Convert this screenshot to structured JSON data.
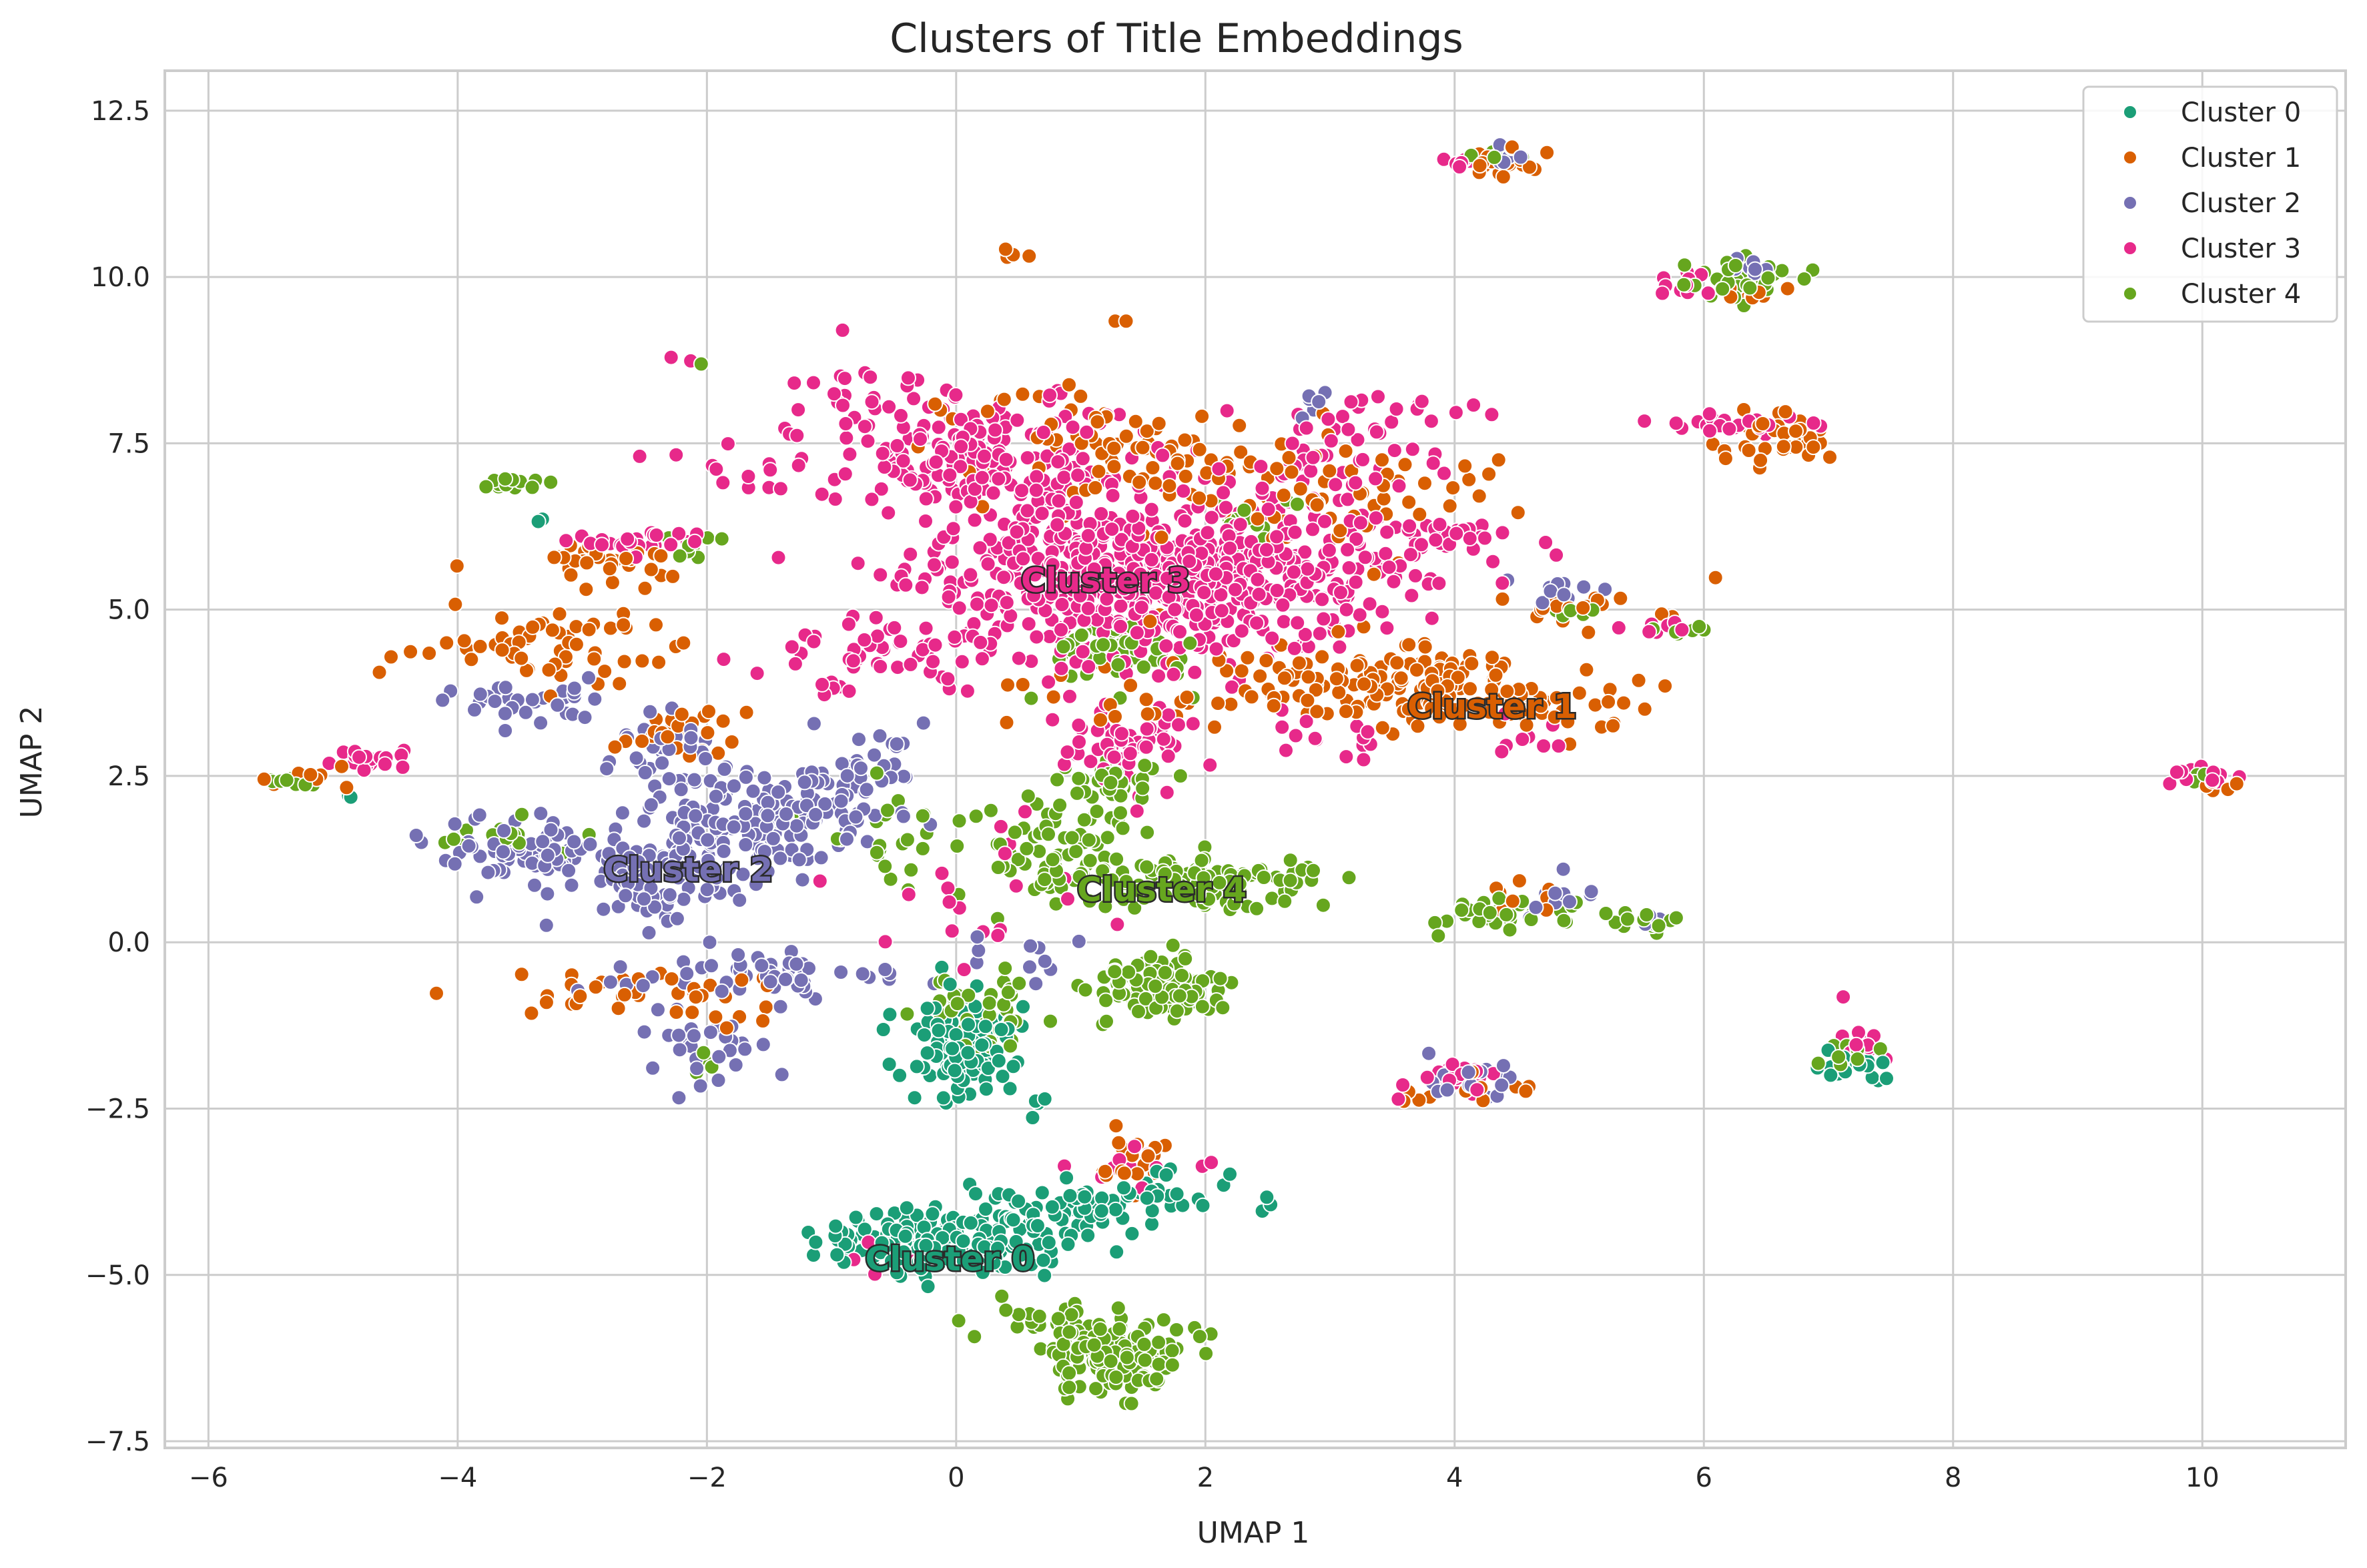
{
  "chart_data": {
    "type": "scatter",
    "title": "Clusters of Title Embeddings",
    "xlabel": "UMAP 1",
    "ylabel": "UMAP 2",
    "xlim": [
      -6.35,
      11.15
    ],
    "ylim": [
      -7.6,
      13.1
    ],
    "xticks": [
      -6,
      -4,
      -2,
      0,
      2,
      4,
      6,
      8,
      10
    ],
    "xtick_labels": [
      "−6",
      "−4",
      "−2",
      "0",
      "2",
      "4",
      "6",
      "8",
      "10"
    ],
    "yticks": [
      -7.5,
      -5.0,
      -2.5,
      0.0,
      2.5,
      5.0,
      7.5,
      10.0,
      12.5
    ],
    "ytick_labels": [
      "−7.5",
      "−5.0",
      "−2.5",
      "0.0",
      "2.5",
      "5.0",
      "7.5",
      "10.0",
      "12.5"
    ],
    "grid": true,
    "legend_position": "top-right",
    "series": [
      {
        "name": "Cluster 0",
        "color": "#1b9e77",
        "centroid_label": "Cluster 0",
        "centroid": [
          -0.05,
          -4.75
        ],
        "blobs": [
          {
            "cx": -0.1,
            "cy": -4.45,
            "sx": 0.5,
            "sy": 0.28,
            "n": 170
          },
          {
            "cx": 0.8,
            "cy": -4.05,
            "sx": 0.35,
            "sy": 0.15,
            "n": 40
          },
          {
            "cx": 1.6,
            "cy": -3.8,
            "sx": 0.35,
            "sy": 0.15,
            "n": 35
          },
          {
            "cx": 0.1,
            "cy": -1.6,
            "sx": 0.22,
            "sy": 0.35,
            "n": 110
          },
          {
            "cx": -3.4,
            "cy": 6.3,
            "sx": 0.05,
            "sy": 0.05,
            "n": 2
          },
          {
            "cx": 4.0,
            "cy": 6.1,
            "sx": 0.1,
            "sy": 0.1,
            "n": 2
          },
          {
            "cx": 7.2,
            "cy": -1.9,
            "sx": 0.18,
            "sy": 0.15,
            "n": 18
          },
          {
            "cx": -4.9,
            "cy": 2.2,
            "sx": 0.05,
            "sy": 0.05,
            "n": 2
          },
          {
            "cx": 0.6,
            "cy": -2.5,
            "sx": 0.1,
            "sy": 0.15,
            "n": 4
          }
        ]
      },
      {
        "name": "Cluster 1",
        "color": "#d95f02",
        "centroid_label": "Cluster 1",
        "centroid": [
          4.3,
          3.55
        ],
        "blobs": [
          {
            "cx": 3.5,
            "cy": 3.9,
            "sx": 0.55,
            "sy": 0.28,
            "n": 120
          },
          {
            "cx": 4.6,
            "cy": 3.5,
            "sx": 0.35,
            "sy": 0.22,
            "n": 50
          },
          {
            "cx": 2.8,
            "cy": 6.9,
            "sx": 0.8,
            "sy": 0.5,
            "n": 80
          },
          {
            "cx": 1.0,
            "cy": 7.4,
            "sx": 0.7,
            "sy": 0.5,
            "n": 70
          },
          {
            "cx": -3.3,
            "cy": 4.5,
            "sx": 0.6,
            "sy": 0.35,
            "n": 60
          },
          {
            "cx": -2.9,
            "cy": 5.7,
            "sx": 0.4,
            "sy": 0.15,
            "n": 30
          },
          {
            "cx": -2.2,
            "cy": 3.2,
            "sx": 0.25,
            "sy": 0.2,
            "n": 30
          },
          {
            "cx": -2.5,
            "cy": -0.8,
            "sx": 0.6,
            "sy": 0.2,
            "n": 40
          },
          {
            "cx": 6.6,
            "cy": 7.6,
            "sx": 0.25,
            "sy": 0.22,
            "n": 35
          },
          {
            "cx": 6.4,
            "cy": 9.9,
            "sx": 0.2,
            "sy": 0.15,
            "n": 15
          },
          {
            "cx": 4.4,
            "cy": 11.75,
            "sx": 0.15,
            "sy": 0.12,
            "n": 18
          },
          {
            "cx": 1.4,
            "cy": -3.3,
            "sx": 0.2,
            "sy": 0.25,
            "n": 20
          },
          {
            "cx": 5.1,
            "cy": 5.0,
            "sx": 0.4,
            "sy": 0.2,
            "n": 20
          },
          {
            "cx": 4.2,
            "cy": -2.2,
            "sx": 0.35,
            "sy": 0.15,
            "n": 15
          },
          {
            "cx": 0.5,
            "cy": 10.3,
            "sx": 0.05,
            "sy": 0.1,
            "n": 4
          },
          {
            "cx": 1.3,
            "cy": 9.3,
            "sx": 0.05,
            "sy": 0.05,
            "n": 2
          },
          {
            "cx": -5.1,
            "cy": 2.45,
            "sx": 0.2,
            "sy": 0.06,
            "n": 10
          },
          {
            "cx": 10.1,
            "cy": 2.4,
            "sx": 0.15,
            "sy": 0.1,
            "n": 5
          },
          {
            "cx": 1.8,
            "cy": 4.0,
            "sx": 0.6,
            "sy": 0.4,
            "n": 40
          },
          {
            "cx": 4.5,
            "cy": 0.7,
            "sx": 0.2,
            "sy": 0.15,
            "n": 8
          }
        ]
      },
      {
        "name": "Cluster 2",
        "color": "#7570b3",
        "centroid_label": "Cluster 2",
        "centroid": [
          -2.15,
          1.1
        ],
        "blobs": [
          {
            "cx": -3.4,
            "cy": 1.35,
            "sx": 0.4,
            "sy": 0.25,
            "n": 80
          },
          {
            "cx": -2.4,
            "cy": 0.9,
            "sx": 0.3,
            "sy": 0.35,
            "n": 80
          },
          {
            "cx": -1.5,
            "cy": 1.8,
            "sx": 0.45,
            "sy": 0.35,
            "n": 150
          },
          {
            "cx": -2.3,
            "cy": 2.8,
            "sx": 0.25,
            "sy": 0.35,
            "n": 40
          },
          {
            "cx": -3.5,
            "cy": 3.6,
            "sx": 0.3,
            "sy": 0.15,
            "n": 30
          },
          {
            "cx": -1.5,
            "cy": -0.5,
            "sx": 0.6,
            "sy": 0.2,
            "n": 50
          },
          {
            "cx": -2.0,
            "cy": -1.6,
            "sx": 0.25,
            "sy": 0.35,
            "n": 30
          },
          {
            "cx": -0.8,
            "cy": 2.6,
            "sx": 0.3,
            "sy": 0.25,
            "n": 30
          },
          {
            "cx": 4.2,
            "cy": -2.1,
            "sx": 0.2,
            "sy": 0.15,
            "n": 20
          },
          {
            "cx": 6.4,
            "cy": 10.1,
            "sx": 0.1,
            "sy": 0.1,
            "n": 10
          },
          {
            "cx": 4.4,
            "cy": 11.8,
            "sx": 0.1,
            "sy": 0.08,
            "n": 8
          },
          {
            "cx": 2.9,
            "cy": 8.1,
            "sx": 0.1,
            "sy": 0.1,
            "n": 6
          },
          {
            "cx": 4.8,
            "cy": 0.7,
            "sx": 0.15,
            "sy": 0.2,
            "n": 10
          },
          {
            "cx": 4.9,
            "cy": 5.4,
            "sx": 0.25,
            "sy": 0.12,
            "n": 10
          },
          {
            "cx": 5.6,
            "cy": 0.3,
            "sx": 0.1,
            "sy": 0.08,
            "n": 4
          },
          {
            "cx": 0.5,
            "cy": -0.2,
            "sx": 0.3,
            "sy": 0.2,
            "n": 10
          }
        ]
      },
      {
        "name": "Cluster 3",
        "color": "#e7298a",
        "centroid_label": "Cluster 3",
        "centroid": [
          1.2,
          5.45
        ],
        "blobs": [
          {
            "cx": 1.3,
            "cy": 5.5,
            "sx": 0.85,
            "sy": 0.6,
            "n": 500
          },
          {
            "cx": 0.3,
            "cy": 7.2,
            "sx": 0.55,
            "sy": 0.45,
            "n": 180
          },
          {
            "cx": 2.6,
            "cy": 5.4,
            "sx": 0.6,
            "sy": 0.6,
            "n": 150
          },
          {
            "cx": 1.4,
            "cy": 3.0,
            "sx": 0.25,
            "sy": 0.3,
            "n": 60
          },
          {
            "cx": -0.5,
            "cy": 4.3,
            "sx": 0.6,
            "sy": 0.3,
            "n": 60
          },
          {
            "cx": -0.6,
            "cy": 8.0,
            "sx": 0.35,
            "sy": 0.4,
            "n": 40
          },
          {
            "cx": 3.1,
            "cy": 7.3,
            "sx": 0.4,
            "sy": 0.4,
            "n": 50
          },
          {
            "cx": 3.8,
            "cy": 6.0,
            "sx": 0.4,
            "sy": 0.25,
            "n": 40
          },
          {
            "cx": -2.5,
            "cy": 6.0,
            "sx": 0.25,
            "sy": 0.1,
            "n": 25
          },
          {
            "cx": -1.8,
            "cy": 7.2,
            "sx": 0.3,
            "sy": 0.2,
            "n": 12
          },
          {
            "cx": -4.75,
            "cy": 2.75,
            "sx": 0.15,
            "sy": 0.1,
            "n": 20
          },
          {
            "cx": 6.3,
            "cy": 7.8,
            "sx": 0.35,
            "sy": 0.1,
            "n": 25
          },
          {
            "cx": 6.0,
            "cy": 9.9,
            "sx": 0.15,
            "sy": 0.12,
            "n": 12
          },
          {
            "cx": 4.1,
            "cy": 11.7,
            "sx": 0.1,
            "sy": 0.05,
            "n": 6
          },
          {
            "cx": 4.0,
            "cy": -2.0,
            "sx": 0.2,
            "sy": 0.2,
            "n": 20
          },
          {
            "cx": 7.3,
            "cy": -1.5,
            "sx": 0.12,
            "sy": 0.2,
            "n": 12
          },
          {
            "cx": 10.0,
            "cy": 2.45,
            "sx": 0.2,
            "sy": 0.08,
            "n": 12
          },
          {
            "cx": 1.6,
            "cy": -3.4,
            "sx": 0.3,
            "sy": 0.15,
            "n": 12
          },
          {
            "cx": 3.5,
            "cy": 8.0,
            "sx": 0.35,
            "sy": 0.15,
            "n": 12
          },
          {
            "cx": 5.7,
            "cy": 4.75,
            "sx": 0.2,
            "sy": 0.05,
            "n": 8
          },
          {
            "cx": 4.5,
            "cy": 3.0,
            "sx": 0.2,
            "sy": 0.2,
            "n": 8
          },
          {
            "cx": 3.0,
            "cy": 3.1,
            "sx": 0.3,
            "sy": 0.2,
            "n": 15
          },
          {
            "cx": -2.2,
            "cy": 8.8,
            "sx": 0.05,
            "sy": 0.05,
            "n": 2
          },
          {
            "cx": 0.2,
            "cy": 0.8,
            "sx": 0.6,
            "sy": 0.6,
            "n": 20
          },
          {
            "cx": -0.6,
            "cy": -4.8,
            "sx": 0.15,
            "sy": 0.1,
            "n": 4
          }
        ]
      },
      {
        "name": "Cluster 4",
        "color": "#66a61e",
        "centroid_label": "Cluster 4",
        "centroid": [
          1.65,
          0.8
        ],
        "blobs": [
          {
            "cx": 1.3,
            "cy": -6.2,
            "sx": 0.3,
            "sy": 0.25,
            "n": 120
          },
          {
            "cx": 0.8,
            "cy": -5.7,
            "sx": 0.25,
            "sy": 0.15,
            "n": 30
          },
          {
            "cx": 1.6,
            "cy": -0.7,
            "sx": 0.25,
            "sy": 0.2,
            "n": 100
          },
          {
            "cx": 2.0,
            "cy": 0.9,
            "sx": 0.45,
            "sy": 0.2,
            "n": 100
          },
          {
            "cx": 0.8,
            "cy": 1.4,
            "sx": 0.35,
            "sy": 0.4,
            "n": 80
          },
          {
            "cx": 1.2,
            "cy": 4.3,
            "sx": 0.3,
            "sy": 0.25,
            "n": 60
          },
          {
            "cx": 1.3,
            "cy": 2.45,
            "sx": 0.2,
            "sy": 0.12,
            "n": 40
          },
          {
            "cx": 0.2,
            "cy": -1.0,
            "sx": 0.2,
            "sy": 0.4,
            "n": 40
          },
          {
            "cx": 6.4,
            "cy": 9.95,
            "sx": 0.2,
            "sy": 0.18,
            "n": 40
          },
          {
            "cx": 4.4,
            "cy": 0.45,
            "sx": 0.3,
            "sy": 0.12,
            "n": 40
          },
          {
            "cx": 5.6,
            "cy": 0.3,
            "sx": 0.15,
            "sy": 0.06,
            "n": 12
          },
          {
            "cx": -3.55,
            "cy": 6.9,
            "sx": 0.12,
            "sy": 0.06,
            "n": 15
          },
          {
            "cx": -2.1,
            "cy": 5.95,
            "sx": 0.1,
            "sy": 0.1,
            "n": 10
          },
          {
            "cx": -3.6,
            "cy": 1.6,
            "sx": 0.25,
            "sy": 0.15,
            "n": 15
          },
          {
            "cx": 4.4,
            "cy": 11.8,
            "sx": 0.1,
            "sy": 0.08,
            "n": 10
          },
          {
            "cx": -5.4,
            "cy": 2.42,
            "sx": 0.15,
            "sy": 0.04,
            "n": 10
          },
          {
            "cx": 7.1,
            "cy": -1.7,
            "sx": 0.18,
            "sy": 0.18,
            "n": 10
          },
          {
            "cx": 10.0,
            "cy": 2.5,
            "sx": 0.08,
            "sy": 0.05,
            "n": 6
          },
          {
            "cx": 5.9,
            "cy": 4.7,
            "sx": 0.15,
            "sy": 0.05,
            "n": 6
          },
          {
            "cx": 4.9,
            "cy": 4.95,
            "sx": 0.15,
            "sy": 0.05,
            "n": 6
          },
          {
            "cx": -0.6,
            "cy": 1.6,
            "sx": 0.3,
            "sy": 0.4,
            "n": 25
          },
          {
            "cx": 2.4,
            "cy": 6.4,
            "sx": 0.4,
            "sy": 0.2,
            "n": 15
          },
          {
            "cx": -2.0,
            "cy": -1.8,
            "sx": 0.1,
            "sy": 0.1,
            "n": 5
          },
          {
            "cx": -2.0,
            "cy": 8.7,
            "sx": 0.03,
            "sy": 0.03,
            "n": 1
          }
        ]
      }
    ]
  }
}
